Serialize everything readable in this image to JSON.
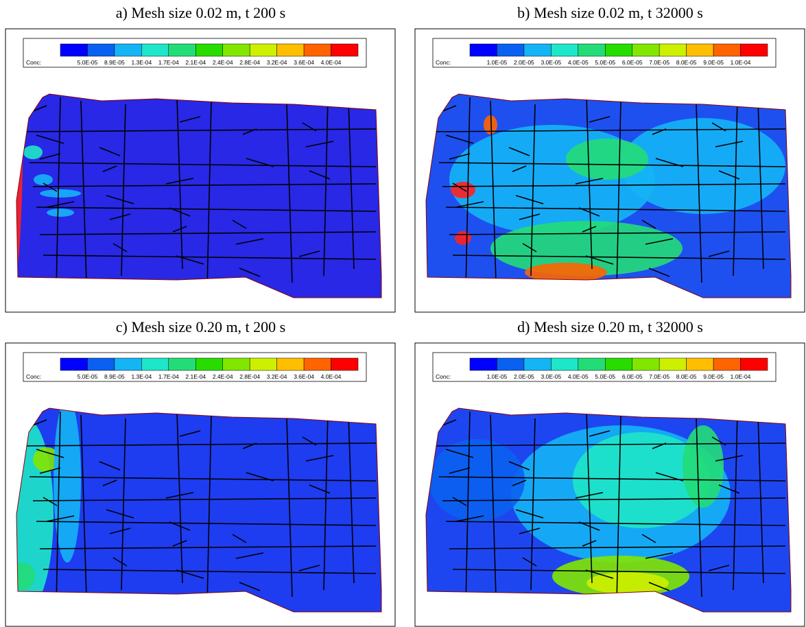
{
  "panels": [
    {
      "title": "a) Mesh size 0.02 m, t 200 s",
      "colorbar": {
        "label": "Conc:",
        "ticks": [
          "5.0E-05",
          "8.9E-05",
          "1.3E-04",
          "1.7E-04",
          "2.1E-04",
          "2.4E-04",
          "2.8E-04",
          "3.2E-04",
          "3.6E-04",
          "4.0E-04"
        ]
      }
    },
    {
      "title": "b) Mesh size 0.02 m, t 32000 s",
      "colorbar": {
        "label": "Conc:",
        "ticks": [
          "1.0E-05",
          "2.0E-05",
          "3.0E-05",
          "4.0E-05",
          "5.0E-05",
          "6.0E-05",
          "7.0E-05",
          "8.0E-05",
          "9.0E-05",
          "1.0E-04"
        ]
      }
    },
    {
      "title": "c) Mesh size 0.20 m, t 200 s",
      "colorbar": {
        "label": "Conc:",
        "ticks": [
          "5.0E-05",
          "8.9E-05",
          "1.3E-04",
          "1.7E-04",
          "2.1E-04",
          "2.4E-04",
          "2.8E-04",
          "3.2E-04",
          "3.6E-04",
          "4.0E-04"
        ]
      }
    },
    {
      "title": "d) Mesh size 0.20 m, t 32000 s",
      "colorbar": {
        "label": "Conc:",
        "ticks": [
          "1.0E-05",
          "2.0E-05",
          "3.0E-05",
          "4.0E-05",
          "5.0E-05",
          "6.0E-05",
          "7.0E-05",
          "8.0E-05",
          "9.0E-05",
          "1.0E-04"
        ]
      }
    }
  ]
}
